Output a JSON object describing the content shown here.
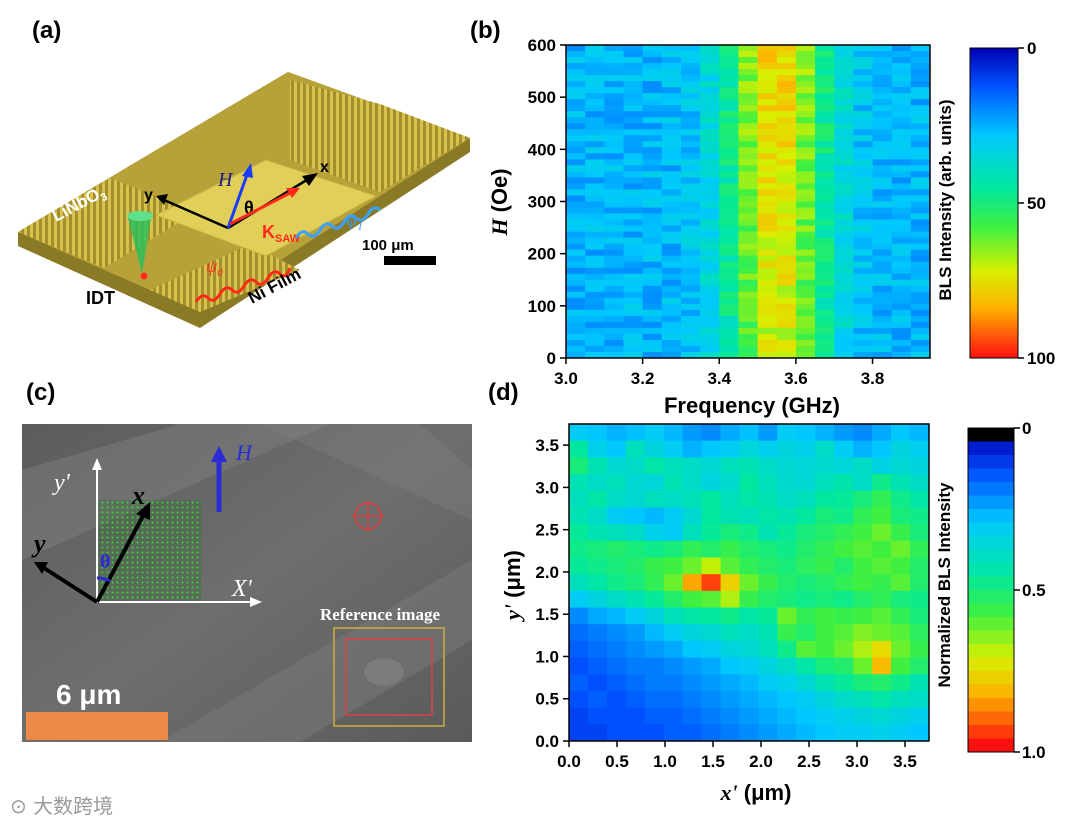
{
  "panels": {
    "a": {
      "label": "(a)",
      "substrate": "LiNbO",
      "substrate_sub": "3",
      "idt": "IDT",
      "film": "Ni Film",
      "h": "H",
      "theta": "θ",
      "ksaw": "K",
      "ksaw_sub": "SAW",
      "psi0": "ψ",
      "psi0_sub": "0",
      "psi1": "ψ",
      "psi1_sub": "1",
      "x_axis": "x",
      "y_axis": "y",
      "scale": "100 μm",
      "colors": {
        "gold": "#b7a23a",
        "film": "#e2cf5a",
        "wave_red": "#ff2a1a",
        "wave_blue": "#3aa0ff"
      }
    },
    "b": {
      "label": "(b)"
    },
    "c": {
      "label": "(c)",
      "h": "H",
      "y_prime": "y'",
      "x_prime": "X'",
      "x": "x",
      "y": "y",
      "theta": "θ",
      "reference": "Reference image",
      "scale": "6 μm",
      "colors": {
        "bg": "#6a6a6a",
        "scale_bar": "#ee8a48",
        "arrow_h": "#2b2bd6",
        "grid": "#27c027"
      }
    },
    "d": {
      "label": "(d)"
    }
  },
  "watermark": "⊙ 大数跨境",
  "chart_data": [
    {
      "type": "heatmap",
      "panel": "b",
      "xlabel": "Frequency (GHz)",
      "ylabel": "H (Oe)",
      "ylabel_var": "H",
      "ylabel_unit": " (Oe)",
      "xlim": [
        3.0,
        3.95
      ],
      "ylim": [
        0,
        600
      ],
      "xticks": [
        "3.0",
        "3.2",
        "3.4",
        "3.6",
        "3.8"
      ],
      "xtick_values": [
        3.0,
        3.2,
        3.4,
        3.6,
        3.8
      ],
      "yticks": [
        "0",
        "100",
        "200",
        "300",
        "400",
        "500",
        "600"
      ],
      "ytick_values": [
        0,
        100,
        200,
        300,
        400,
        500,
        600
      ],
      "colorbar": {
        "title": "BLS Intensity (arb. units)",
        "ticks": [
          "0",
          "50",
          "100"
        ],
        "tick_values": [
          0,
          50,
          100
        ],
        "reversed": true
      },
      "peak_frequency_ghz": 3.55,
      "peak_width_ghz": 0.13,
      "grid_columns": 19,
      "grid_rows": 52
    },
    {
      "type": "heatmap",
      "panel": "d",
      "xlabel": "x' (μm)",
      "xlabel_var": "x'",
      "xlabel_unit": " (μm)",
      "ylabel": "y' (μm)",
      "ylabel_var": "y'",
      "ylabel_unit": " (μm)",
      "xlim": [
        0.0,
        3.75
      ],
      "ylim": [
        0.0,
        3.75
      ],
      "xticks": [
        "0.0",
        "0.5",
        "1.0",
        "1.5",
        "2.0",
        "2.5",
        "3.0",
        "3.5"
      ],
      "xtick_values": [
        0.0,
        0.5,
        1.0,
        1.5,
        2.0,
        2.5,
        3.0,
        3.5
      ],
      "yticks": [
        "0.0",
        "0.5",
        "1.0",
        "1.5",
        "2.0",
        "2.5",
        "3.0",
        "3.5"
      ],
      "ytick_values": [
        0.0,
        0.5,
        1.0,
        1.5,
        2.0,
        2.5,
        3.0,
        3.5
      ],
      "colorbar": {
        "title": "Normalized BLS Intensity",
        "ticks": [
          "0",
          "0.5",
          "1.0"
        ],
        "tick_values": [
          0,
          0.5,
          1.0
        ],
        "reversed": true
      },
      "values": [
        [
          0.3,
          0.28,
          0.25,
          0.27,
          0.3,
          0.26,
          0.22,
          0.2,
          0.24,
          0.27,
          0.22,
          0.3,
          0.28,
          0.25,
          0.22,
          0.2,
          0.24,
          0.28,
          0.26
        ],
        [
          0.45,
          0.32,
          0.28,
          0.4,
          0.34,
          0.3,
          0.25,
          0.28,
          0.3,
          0.35,
          0.31,
          0.34,
          0.32,
          0.38,
          0.3,
          0.25,
          0.28,
          0.34,
          0.31
        ],
        [
          0.5,
          0.42,
          0.36,
          0.38,
          0.44,
          0.4,
          0.38,
          0.36,
          0.4,
          0.42,
          0.38,
          0.36,
          0.35,
          0.37,
          0.35,
          0.38,
          0.33,
          0.36,
          0.34
        ],
        [
          0.42,
          0.38,
          0.4,
          0.36,
          0.35,
          0.42,
          0.38,
          0.34,
          0.37,
          0.45,
          0.4,
          0.37,
          0.36,
          0.4,
          0.43,
          0.38,
          0.48,
          0.42,
          0.38
        ],
        [
          0.4,
          0.44,
          0.38,
          0.36,
          0.4,
          0.38,
          0.41,
          0.45,
          0.4,
          0.44,
          0.42,
          0.38,
          0.4,
          0.45,
          0.46,
          0.5,
          0.55,
          0.48,
          0.44
        ],
        [
          0.42,
          0.38,
          0.3,
          0.28,
          0.26,
          0.3,
          0.36,
          0.45,
          0.42,
          0.4,
          0.44,
          0.42,
          0.45,
          0.5,
          0.48,
          0.55,
          0.58,
          0.5,
          0.48
        ],
        [
          0.46,
          0.42,
          0.4,
          0.38,
          0.32,
          0.3,
          0.4,
          0.46,
          0.5,
          0.48,
          0.42,
          0.46,
          0.5,
          0.52,
          0.55,
          0.58,
          0.62,
          0.56,
          0.5
        ],
        [
          0.48,
          0.5,
          0.52,
          0.5,
          0.48,
          0.5,
          0.55,
          0.52,
          0.56,
          0.52,
          0.5,
          0.48,
          0.52,
          0.55,
          0.58,
          0.6,
          0.58,
          0.62,
          0.55
        ],
        [
          0.46,
          0.48,
          0.5,
          0.52,
          0.56,
          0.58,
          0.62,
          0.7,
          0.6,
          0.55,
          0.52,
          0.5,
          0.54,
          0.56,
          0.52,
          0.58,
          0.6,
          0.58,
          0.52
        ],
        [
          0.4,
          0.44,
          0.48,
          0.5,
          0.55,
          0.62,
          0.85,
          0.95,
          0.78,
          0.62,
          0.56,
          0.52,
          0.5,
          0.52,
          0.55,
          0.58,
          0.56,
          0.6,
          0.52
        ],
        [
          0.3,
          0.34,
          0.38,
          0.42,
          0.46,
          0.52,
          0.58,
          0.6,
          0.68,
          0.56,
          0.52,
          0.5,
          0.48,
          0.5,
          0.48,
          0.52,
          0.55,
          0.5,
          0.48
        ],
        [
          0.2,
          0.24,
          0.26,
          0.3,
          0.34,
          0.4,
          0.44,
          0.45,
          0.48,
          0.44,
          0.46,
          0.62,
          0.55,
          0.58,
          0.56,
          0.58,
          0.6,
          0.55,
          0.5
        ],
        [
          0.16,
          0.18,
          0.2,
          0.22,
          0.26,
          0.3,
          0.34,
          0.36,
          0.4,
          0.38,
          0.42,
          0.56,
          0.52,
          0.58,
          0.6,
          0.64,
          0.62,
          0.6,
          0.54
        ],
        [
          0.14,
          0.16,
          0.18,
          0.2,
          0.22,
          0.24,
          0.28,
          0.3,
          0.34,
          0.36,
          0.4,
          0.48,
          0.6,
          0.58,
          0.62,
          0.68,
          0.76,
          0.62,
          0.56
        ],
        [
          0.12,
          0.14,
          0.16,
          0.18,
          0.18,
          0.2,
          0.22,
          0.24,
          0.28,
          0.3,
          0.34,
          0.38,
          0.44,
          0.5,
          0.52,
          0.62,
          0.82,
          0.58,
          0.52
        ],
        [
          0.14,
          0.12,
          0.14,
          0.16,
          0.18,
          0.18,
          0.2,
          0.22,
          0.24,
          0.26,
          0.3,
          0.32,
          0.36,
          0.42,
          0.46,
          0.5,
          0.52,
          0.48,
          0.42
        ],
        [
          0.12,
          0.14,
          0.12,
          0.14,
          0.16,
          0.16,
          0.18,
          0.2,
          0.22,
          0.24,
          0.26,
          0.28,
          0.3,
          0.34,
          0.38,
          0.4,
          0.44,
          0.4,
          0.38
        ],
        [
          0.1,
          0.12,
          0.12,
          0.12,
          0.14,
          0.14,
          0.16,
          0.18,
          0.2,
          0.22,
          0.24,
          0.26,
          0.28,
          0.3,
          0.32,
          0.34,
          0.36,
          0.34,
          0.32
        ],
        [
          0.1,
          0.1,
          0.12,
          0.12,
          0.12,
          0.14,
          0.14,
          0.16,
          0.18,
          0.2,
          0.22,
          0.24,
          0.26,
          0.28,
          0.3,
          0.3,
          0.32,
          0.3,
          0.28
        ]
      ]
    }
  ]
}
